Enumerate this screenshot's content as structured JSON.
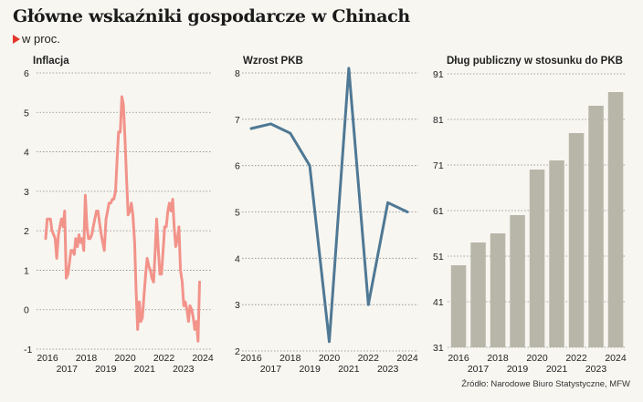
{
  "header": {
    "title": "Główne wskaźniki gospodarcze w Chinach",
    "subtitle": "w proc.",
    "source": "Źródło: Narodowe Biuro Statystyczne, MFW"
  },
  "colors": {
    "inflation": "#f2938a",
    "gdp": "#4f7894",
    "debt": "#b8b6a8",
    "grid": "#888888",
    "accent": "#e5352b"
  },
  "chart_data": [
    {
      "type": "line",
      "title": "Inflacja",
      "ylim": [
        -1,
        6
      ],
      "yticks": [
        "-1",
        "0",
        "1",
        "2",
        "3",
        "4",
        "5",
        "6"
      ],
      "xlim": [
        2016,
        2024.25
      ],
      "xticks_top": [
        "2016",
        "2018",
        "2020",
        "2022",
        "2024"
      ],
      "xticks_bottom": [
        "2017",
        "2019",
        "2021",
        "2023"
      ],
      "grid": true,
      "series": [
        {
          "x": [
            2016.0,
            2016.08,
            2016.17,
            2016.25,
            2016.33,
            2016.42,
            2016.5,
            2016.58,
            2016.67,
            2016.75,
            2016.83,
            2016.92,
            2017.0,
            2017.08,
            2017.17,
            2017.25,
            2017.33,
            2017.42,
            2017.5,
            2017.58,
            2017.67,
            2017.75,
            2017.83,
            2017.92,
            2018.0,
            2018.08,
            2018.17,
            2018.25,
            2018.33,
            2018.42,
            2018.5,
            2018.58,
            2018.67,
            2018.75,
            2018.83,
            2018.92,
            2019.0,
            2019.08,
            2019.17,
            2019.25,
            2019.33,
            2019.42,
            2019.5,
            2019.58,
            2019.67,
            2019.75,
            2019.83,
            2019.92,
            2020.0,
            2020.08,
            2020.17,
            2020.25,
            2020.33,
            2020.42,
            2020.5,
            2020.58,
            2020.67,
            2020.75,
            2020.83,
            2020.92,
            2021.0,
            2021.08,
            2021.17,
            2021.25,
            2021.33,
            2021.42,
            2021.5,
            2021.58,
            2021.67,
            2021.75,
            2021.83,
            2021.92,
            2022.0,
            2022.08,
            2022.17,
            2022.25,
            2022.33,
            2022.42,
            2022.5,
            2022.58,
            2022.67,
            2022.75,
            2022.83,
            2022.92,
            2023.0,
            2023.08,
            2023.17,
            2023.25,
            2023.33,
            2023.42,
            2023.5,
            2023.58,
            2023.67,
            2023.75,
            2023.83,
            2023.92,
            2024.0,
            2024.08
          ],
          "y": [
            1.8,
            2.3,
            2.3,
            2.3,
            2.0,
            1.9,
            1.8,
            1.3,
            1.9,
            2.1,
            2.3,
            2.1,
            2.5,
            0.8,
            0.9,
            1.2,
            1.5,
            1.5,
            1.4,
            1.8,
            1.6,
            1.9,
            1.7,
            1.8,
            1.5,
            2.9,
            2.1,
            1.8,
            1.8,
            1.9,
            2.1,
            2.3,
            2.5,
            2.5,
            2.2,
            1.9,
            1.7,
            1.5,
            2.3,
            2.5,
            2.7,
            2.7,
            2.8,
            2.8,
            3.0,
            3.8,
            4.5,
            4.5,
            5.4,
            5.2,
            4.3,
            3.3,
            2.4,
            2.5,
            2.7,
            2.4,
            1.7,
            0.5,
            -0.5,
            0.2,
            -0.3,
            -0.2,
            0.4,
            0.9,
            1.3,
            1.1,
            1.0,
            0.8,
            0.7,
            1.5,
            2.3,
            1.5,
            0.9,
            0.9,
            1.5,
            2.1,
            2.1,
            2.5,
            2.7,
            2.5,
            2.8,
            2.1,
            1.6,
            1.8,
            2.1,
            1.0,
            0.7,
            0.1,
            0.2,
            0.0,
            -0.3,
            0.1,
            0.0,
            -0.2,
            -0.5,
            -0.3,
            -0.8,
            0.7
          ]
        }
      ]
    },
    {
      "type": "line",
      "title": "Wzrost PKB",
      "ylim": [
        2,
        8
      ],
      "yticks": [
        "2",
        "3",
        "4",
        "5",
        "6",
        "7",
        "8"
      ],
      "xlim": [
        2016,
        2024
      ],
      "xticks_top": [
        "2016",
        "2018",
        "2020",
        "2022",
        "2024"
      ],
      "xticks_bottom": [
        "2017",
        "2019",
        "2021",
        "2023"
      ],
      "grid": true,
      "series": [
        {
          "x": [
            2016,
            2017,
            2018,
            2019,
            2020,
            2021,
            2022,
            2023,
            2024
          ],
          "y": [
            6.8,
            6.9,
            6.7,
            6.0,
            2.2,
            8.1,
            3.0,
            5.2,
            5.0
          ]
        }
      ]
    },
    {
      "type": "bar",
      "title": "Dług publiczny w stosunku do PKB",
      "ylim": [
        31,
        91
      ],
      "yticks": [
        "31",
        "41",
        "51",
        "61",
        "71",
        "81",
        "91"
      ],
      "categories": [
        "2016",
        "2017",
        "2018",
        "2019",
        "2020",
        "2021",
        "2022",
        "2023",
        "2024"
      ],
      "xticks_top": [
        "2016",
        "2018",
        "2020",
        "2022",
        "2024"
      ],
      "xticks_bottom": [
        "2017",
        "2019",
        "2021",
        "2023"
      ],
      "grid": true,
      "values": [
        49,
        54,
        56,
        60,
        70,
        72,
        78,
        84,
        87
      ]
    }
  ]
}
